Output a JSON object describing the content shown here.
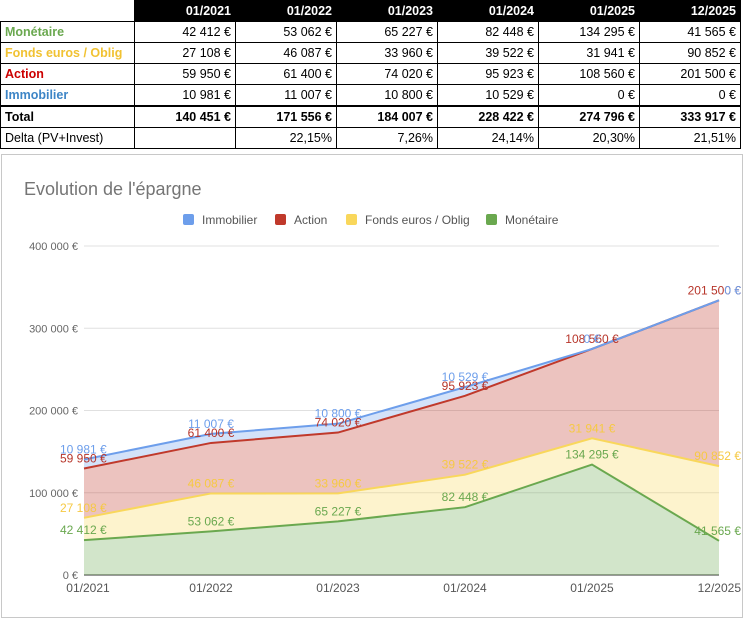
{
  "table": {
    "headers": [
      "",
      "01/2021",
      "01/2022",
      "01/2023",
      "01/2024",
      "01/2025",
      "12/2025"
    ],
    "rows": [
      {
        "label": "Monétaire",
        "color": "#6aa84f",
        "cells": [
          "42 412 €",
          "53 062 €",
          "65 227 €",
          "82 448 €",
          "134 295 €",
          "41 565 €"
        ]
      },
      {
        "label": "Fonds euros / Oblig",
        "color": "#f1c232",
        "cells": [
          "27 108 €",
          "46 087 €",
          "33 960 €",
          "39 522 €",
          "31 941 €",
          "90 852 €"
        ]
      },
      {
        "label": "Action",
        "color": "#cc0000",
        "cells": [
          "59 950 €",
          "61 400 €",
          "74 020 €",
          "95 923 €",
          "108 560 €",
          "201 500 €"
        ]
      },
      {
        "label": "Immobilier",
        "color": "#3d85c6",
        "cells": [
          "10 981 €",
          "11 007 €",
          "10 800 €",
          "10 529 €",
          "0 €",
          "0 €"
        ]
      },
      {
        "label": "Total",
        "color": "#000000",
        "total": true,
        "cells": [
          "140 451 €",
          "171 556 €",
          "184 007 €",
          "228 422 €",
          "274 796 €",
          "333 917 €"
        ]
      },
      {
        "label": "Delta (PV+Invest)",
        "color": "#000000",
        "plain": true,
        "cells": [
          "",
          "22,15%",
          "7,26%",
          "24,14%",
          "20,30%",
          "21,51%"
        ]
      }
    ]
  },
  "chart_data": {
    "type": "area",
    "stacked": true,
    "title": "Evolution de l'épargne",
    "categories": [
      "01/2021",
      "01/2022",
      "01/2023",
      "01/2024",
      "01/2025",
      "12/2025"
    ],
    "ylim": [
      0,
      400000
    ],
    "yticks": [
      0,
      100000,
      200000,
      300000,
      400000
    ],
    "ytick_labels": [
      "0 €",
      "100 000 €",
      "200 000 €",
      "300 000 €",
      "400 000 €"
    ],
    "grid": true,
    "legend_position": "top",
    "legend_order": [
      "Immobilier",
      "Action",
      "Fonds euros / Oblig",
      "Monétaire"
    ],
    "series": [
      {
        "name": "Monétaire",
        "color": "#6aa84f",
        "label_color": "#6aa84f",
        "values": [
          42412,
          53062,
          65227,
          82448,
          134295,
          41565
        ],
        "labels": [
          "42 412 €",
          "53 062 €",
          "65 227 €",
          "82 448 €",
          "134 295 €",
          "41 565 €"
        ]
      },
      {
        "name": "Fonds euros / Oblig",
        "color": "#f9d75b",
        "label_color": "#f6c943",
        "values": [
          27108,
          46087,
          33960,
          39522,
          31941,
          90852
        ],
        "labels": [
          "27 108 €",
          "46 087 €",
          "33 960 €",
          "39 522 €",
          "31 941 €",
          "90 852 €"
        ]
      },
      {
        "name": "Action",
        "color": "#c0392b",
        "label_color": "#b7352a",
        "values": [
          59950,
          61400,
          74020,
          95923,
          108560,
          201500
        ],
        "labels": [
          "59 950 €",
          "61 400 €",
          "74 020 €",
          "95 923 €",
          "108 560 €",
          "201 500 €"
        ]
      },
      {
        "name": "Immobilier",
        "color": "#6d9eeb",
        "label_color": "#6d9eeb",
        "values": [
          10981,
          11007,
          10800,
          10529,
          0,
          0
        ],
        "labels": [
          "10 981 €",
          "11 007 €",
          "10 800 €",
          "10 529 €",
          "0 €",
          "0 €"
        ]
      }
    ]
  }
}
